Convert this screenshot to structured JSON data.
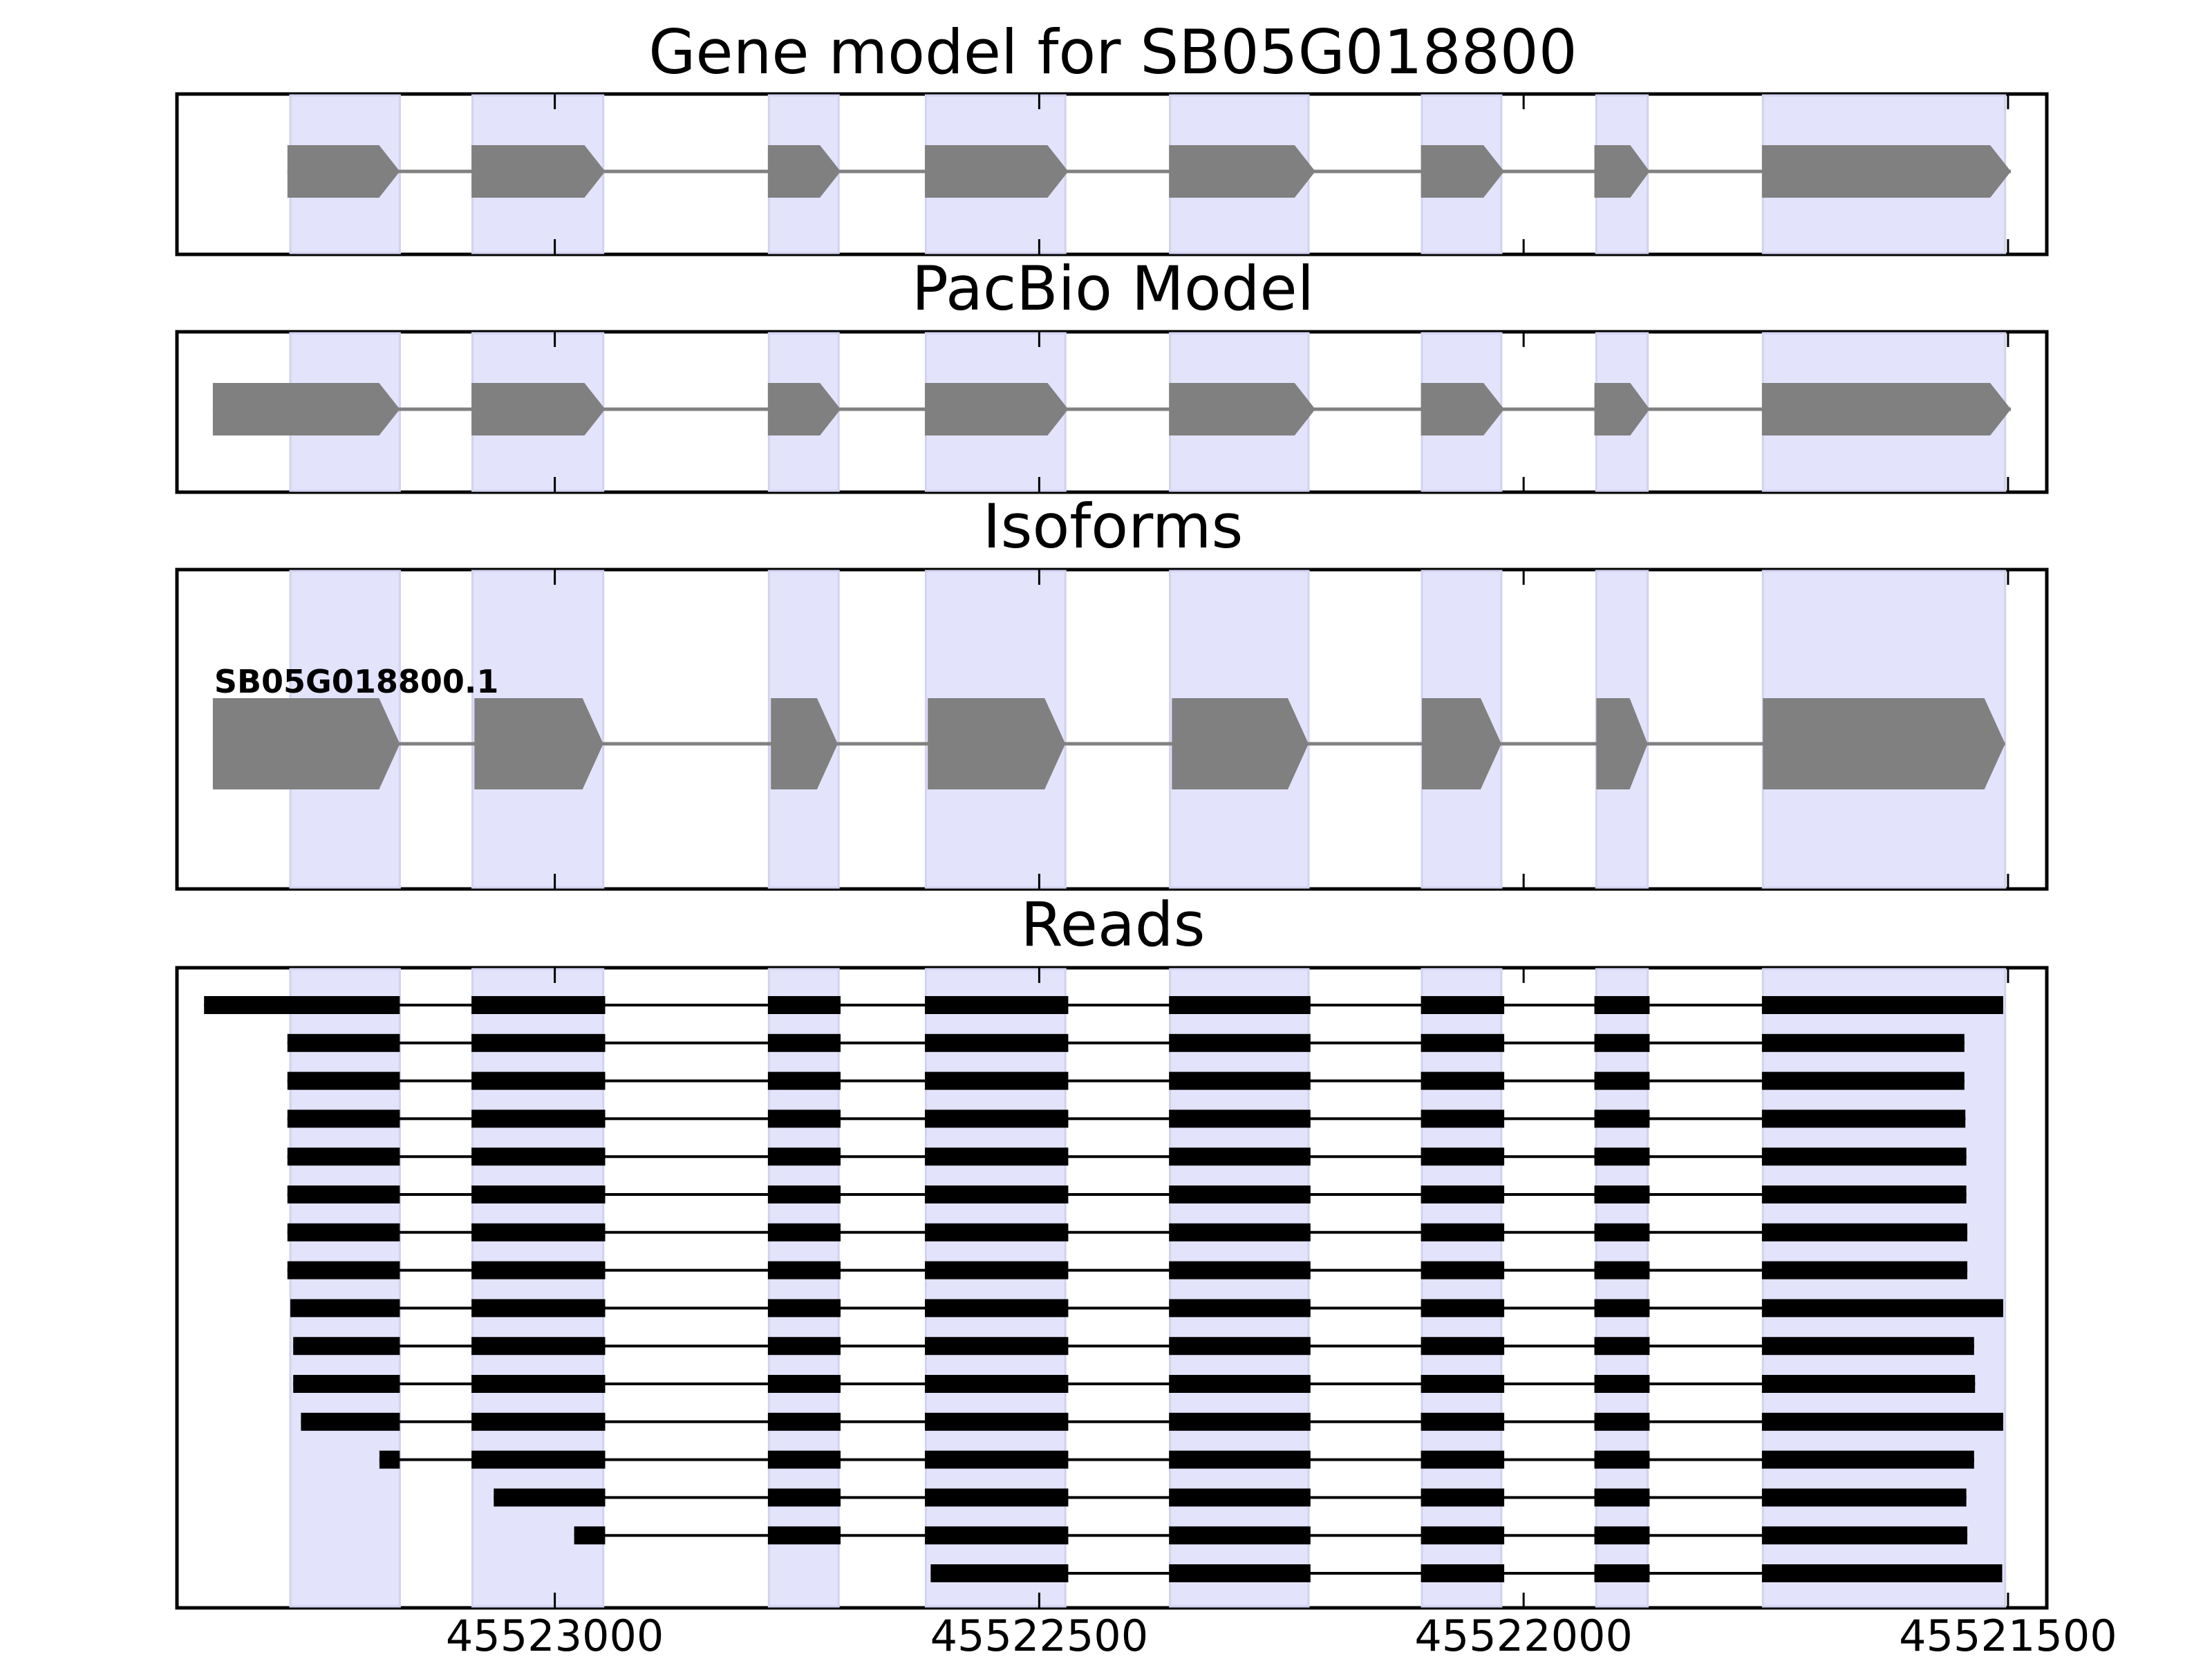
{
  "chart_data": {
    "type": "gene-model",
    "x_axis": {
      "range": [
        45523390,
        45521460
      ],
      "reversed": true,
      "ticks": [
        45523000,
        45522500,
        45522000,
        45521500
      ],
      "tick_labels": [
        "45523000",
        "45522500",
        "45522000",
        "45521500"
      ]
    },
    "colors": {
      "exon_shade": "#e3e3fb",
      "model_exon": "#808080",
      "intron_line": "#808080",
      "read": "#000000",
      "frame": "#000000"
    },
    "exon_shading": [
      [
        45523273,
        45523160
      ],
      [
        45523085,
        45522950
      ],
      [
        45522779,
        45522707
      ],
      [
        45522617,
        45522473
      ],
      [
        45522365,
        45522222
      ],
      [
        45522105,
        45522023
      ],
      [
        45521925,
        45521872
      ],
      [
        45521753,
        45521503
      ]
    ],
    "panels": [
      {
        "title": "Gene model for SB05G018800",
        "tracks": [
          {
            "label": "",
            "exons": [
              [
                45523276,
                45523160
              ],
              [
                45523086,
                45522948
              ],
              [
                45522780,
                45522705
              ],
              [
                45522618,
                45522470
              ],
              [
                45522366,
                45522215
              ],
              [
                45522106,
                45522020
              ],
              [
                45521927,
                45521870
              ],
              [
                45521754,
                45521497
              ]
            ]
          }
        ]
      },
      {
        "title": "PacBio Model",
        "tracks": [
          {
            "label": "",
            "exons": [
              [
                45523353,
                45523160
              ],
              [
                45523086,
                45522948
              ],
              [
                45522780,
                45522705
              ],
              [
                45522618,
                45522470
              ],
              [
                45522366,
                45522215
              ],
              [
                45522106,
                45522020
              ],
              [
                45521927,
                45521870
              ],
              [
                45521754,
                45521497
              ]
            ]
          }
        ]
      },
      {
        "title": "Isoforms",
        "tracks": [
          {
            "label": "SB05G018800.1",
            "exons": [
              [
                45523353,
                45523160
              ],
              [
                45523083,
                45522950
              ],
              [
                45522777,
                45522708
              ],
              [
                45522615,
                45522473
              ],
              [
                45522363,
                45522222
              ],
              [
                45522105,
                45522023
              ],
              [
                45521925,
                45521872
              ],
              [
                45521753,
                45521503
              ]
            ]
          }
        ]
      },
      {
        "title": "Reads",
        "tracks": [
          {
            "label": "",
            "exons": [
              [
                45523362,
                45523160
              ],
              [
                45523086,
                45522948
              ],
              [
                45522780,
                45522705
              ],
              [
                45522618,
                45522470
              ],
              [
                45522366,
                45522220
              ],
              [
                45522106,
                45522020
              ],
              [
                45521927,
                45521870
              ],
              [
                45521754,
                45521505
              ]
            ]
          },
          {
            "label": "",
            "exons": [
              [
                45523276,
                45523160
              ],
              [
                45523086,
                45522948
              ],
              [
                45522780,
                45522705
              ],
              [
                45522618,
                45522470
              ],
              [
                45522366,
                45522220
              ],
              [
                45522106,
                45522020
              ],
              [
                45521927,
                45521870
              ],
              [
                45521754,
                45521545
              ]
            ]
          },
          {
            "label": "",
            "exons": [
              [
                45523276,
                45523160
              ],
              [
                45523086,
                45522948
              ],
              [
                45522780,
                45522705
              ],
              [
                45522618,
                45522470
              ],
              [
                45522366,
                45522220
              ],
              [
                45522106,
                45522020
              ],
              [
                45521927,
                45521870
              ],
              [
                45521754,
                45521545
              ]
            ]
          },
          {
            "label": "",
            "exons": [
              [
                45523276,
                45523160
              ],
              [
                45523086,
                45522948
              ],
              [
                45522780,
                45522705
              ],
              [
                45522618,
                45522470
              ],
              [
                45522366,
                45522220
              ],
              [
                45522106,
                45522020
              ],
              [
                45521927,
                45521870
              ],
              [
                45521754,
                45521544
              ]
            ]
          },
          {
            "label": "",
            "exons": [
              [
                45523276,
                45523160
              ],
              [
                45523086,
                45522948
              ],
              [
                45522780,
                45522705
              ],
              [
                45522618,
                45522470
              ],
              [
                45522366,
                45522220
              ],
              [
                45522106,
                45522020
              ],
              [
                45521927,
                45521870
              ],
              [
                45521754,
                45521543
              ]
            ]
          },
          {
            "label": "",
            "exons": [
              [
                45523276,
                45523160
              ],
              [
                45523086,
                45522948
              ],
              [
                45522780,
                45522705
              ],
              [
                45522618,
                45522470
              ],
              [
                45522366,
                45522220
              ],
              [
                45522106,
                45522020
              ],
              [
                45521927,
                45521870
              ],
              [
                45521754,
                45521543
              ]
            ]
          },
          {
            "label": "",
            "exons": [
              [
                45523276,
                45523160
              ],
              [
                45523086,
                45522948
              ],
              [
                45522780,
                45522705
              ],
              [
                45522618,
                45522470
              ],
              [
                45522366,
                45522220
              ],
              [
                45522106,
                45522020
              ],
              [
                45521927,
                45521870
              ],
              [
                45521754,
                45521542
              ]
            ]
          },
          {
            "label": "",
            "exons": [
              [
                45523276,
                45523160
              ],
              [
                45523086,
                45522948
              ],
              [
                45522780,
                45522705
              ],
              [
                45522618,
                45522470
              ],
              [
                45522366,
                45522220
              ],
              [
                45522106,
                45522020
              ],
              [
                45521927,
                45521870
              ],
              [
                45521754,
                45521542
              ]
            ]
          },
          {
            "label": "",
            "exons": [
              [
                45523273,
                45523160
              ],
              [
                45523086,
                45522948
              ],
              [
                45522780,
                45522705
              ],
              [
                45522618,
                45522470
              ],
              [
                45522366,
                45522220
              ],
              [
                45522106,
                45522020
              ],
              [
                45521927,
                45521870
              ],
              [
                45521754,
                45521505
              ]
            ]
          },
          {
            "label": "",
            "exons": [
              [
                45523270,
                45523160
              ],
              [
                45523086,
                45522948
              ],
              [
                45522780,
                45522705
              ],
              [
                45522618,
                45522470
              ],
              [
                45522366,
                45522220
              ],
              [
                45522106,
                45522020
              ],
              [
                45521927,
                45521870
              ],
              [
                45521754,
                45521535
              ]
            ]
          },
          {
            "label": "",
            "exons": [
              [
                45523270,
                45523160
              ],
              [
                45523086,
                45522948
              ],
              [
                45522780,
                45522705
              ],
              [
                45522618,
                45522470
              ],
              [
                45522366,
                45522220
              ],
              [
                45522106,
                45522020
              ],
              [
                45521927,
                45521870
              ],
              [
                45521754,
                45521534
              ]
            ]
          },
          {
            "label": "",
            "exons": [
              [
                45523262,
                45523160
              ],
              [
                45523086,
                45522948
              ],
              [
                45522780,
                45522705
              ],
              [
                45522618,
                45522470
              ],
              [
                45522366,
                45522220
              ],
              [
                45522106,
                45522020
              ],
              [
                45521927,
                45521870
              ],
              [
                45521754,
                45521505
              ]
            ]
          },
          {
            "label": "",
            "exons": [
              [
                45523181,
                45523160
              ],
              [
                45523086,
                45522948
              ],
              [
                45522780,
                45522705
              ],
              [
                45522618,
                45522470
              ],
              [
                45522366,
                45522220
              ],
              [
                45522106,
                45522020
              ],
              [
                45521927,
                45521870
              ],
              [
                45521754,
                45521535
              ]
            ]
          },
          {
            "label": "",
            "exons": [
              [
                45523063,
                45522948
              ],
              [
                45522780,
                45522705
              ],
              [
                45522618,
                45522470
              ],
              [
                45522366,
                45522220
              ],
              [
                45522106,
                45522020
              ],
              [
                45521927,
                45521870
              ],
              [
                45521754,
                45521543
              ]
            ]
          },
          {
            "label": "",
            "exons": [
              [
                45522980,
                45522948
              ],
              [
                45522780,
                45522705
              ],
              [
                45522618,
                45522470
              ],
              [
                45522366,
                45522220
              ],
              [
                45522106,
                45522020
              ],
              [
                45521927,
                45521870
              ],
              [
                45521754,
                45521542
              ]
            ]
          },
          {
            "label": "",
            "exons": [
              [
                45522612,
                45522470
              ],
              [
                45522366,
                45522220
              ],
              [
                45522106,
                45522020
              ],
              [
                45521927,
                45521870
              ],
              [
                45521754,
                45521506
              ]
            ]
          }
        ]
      }
    ]
  }
}
